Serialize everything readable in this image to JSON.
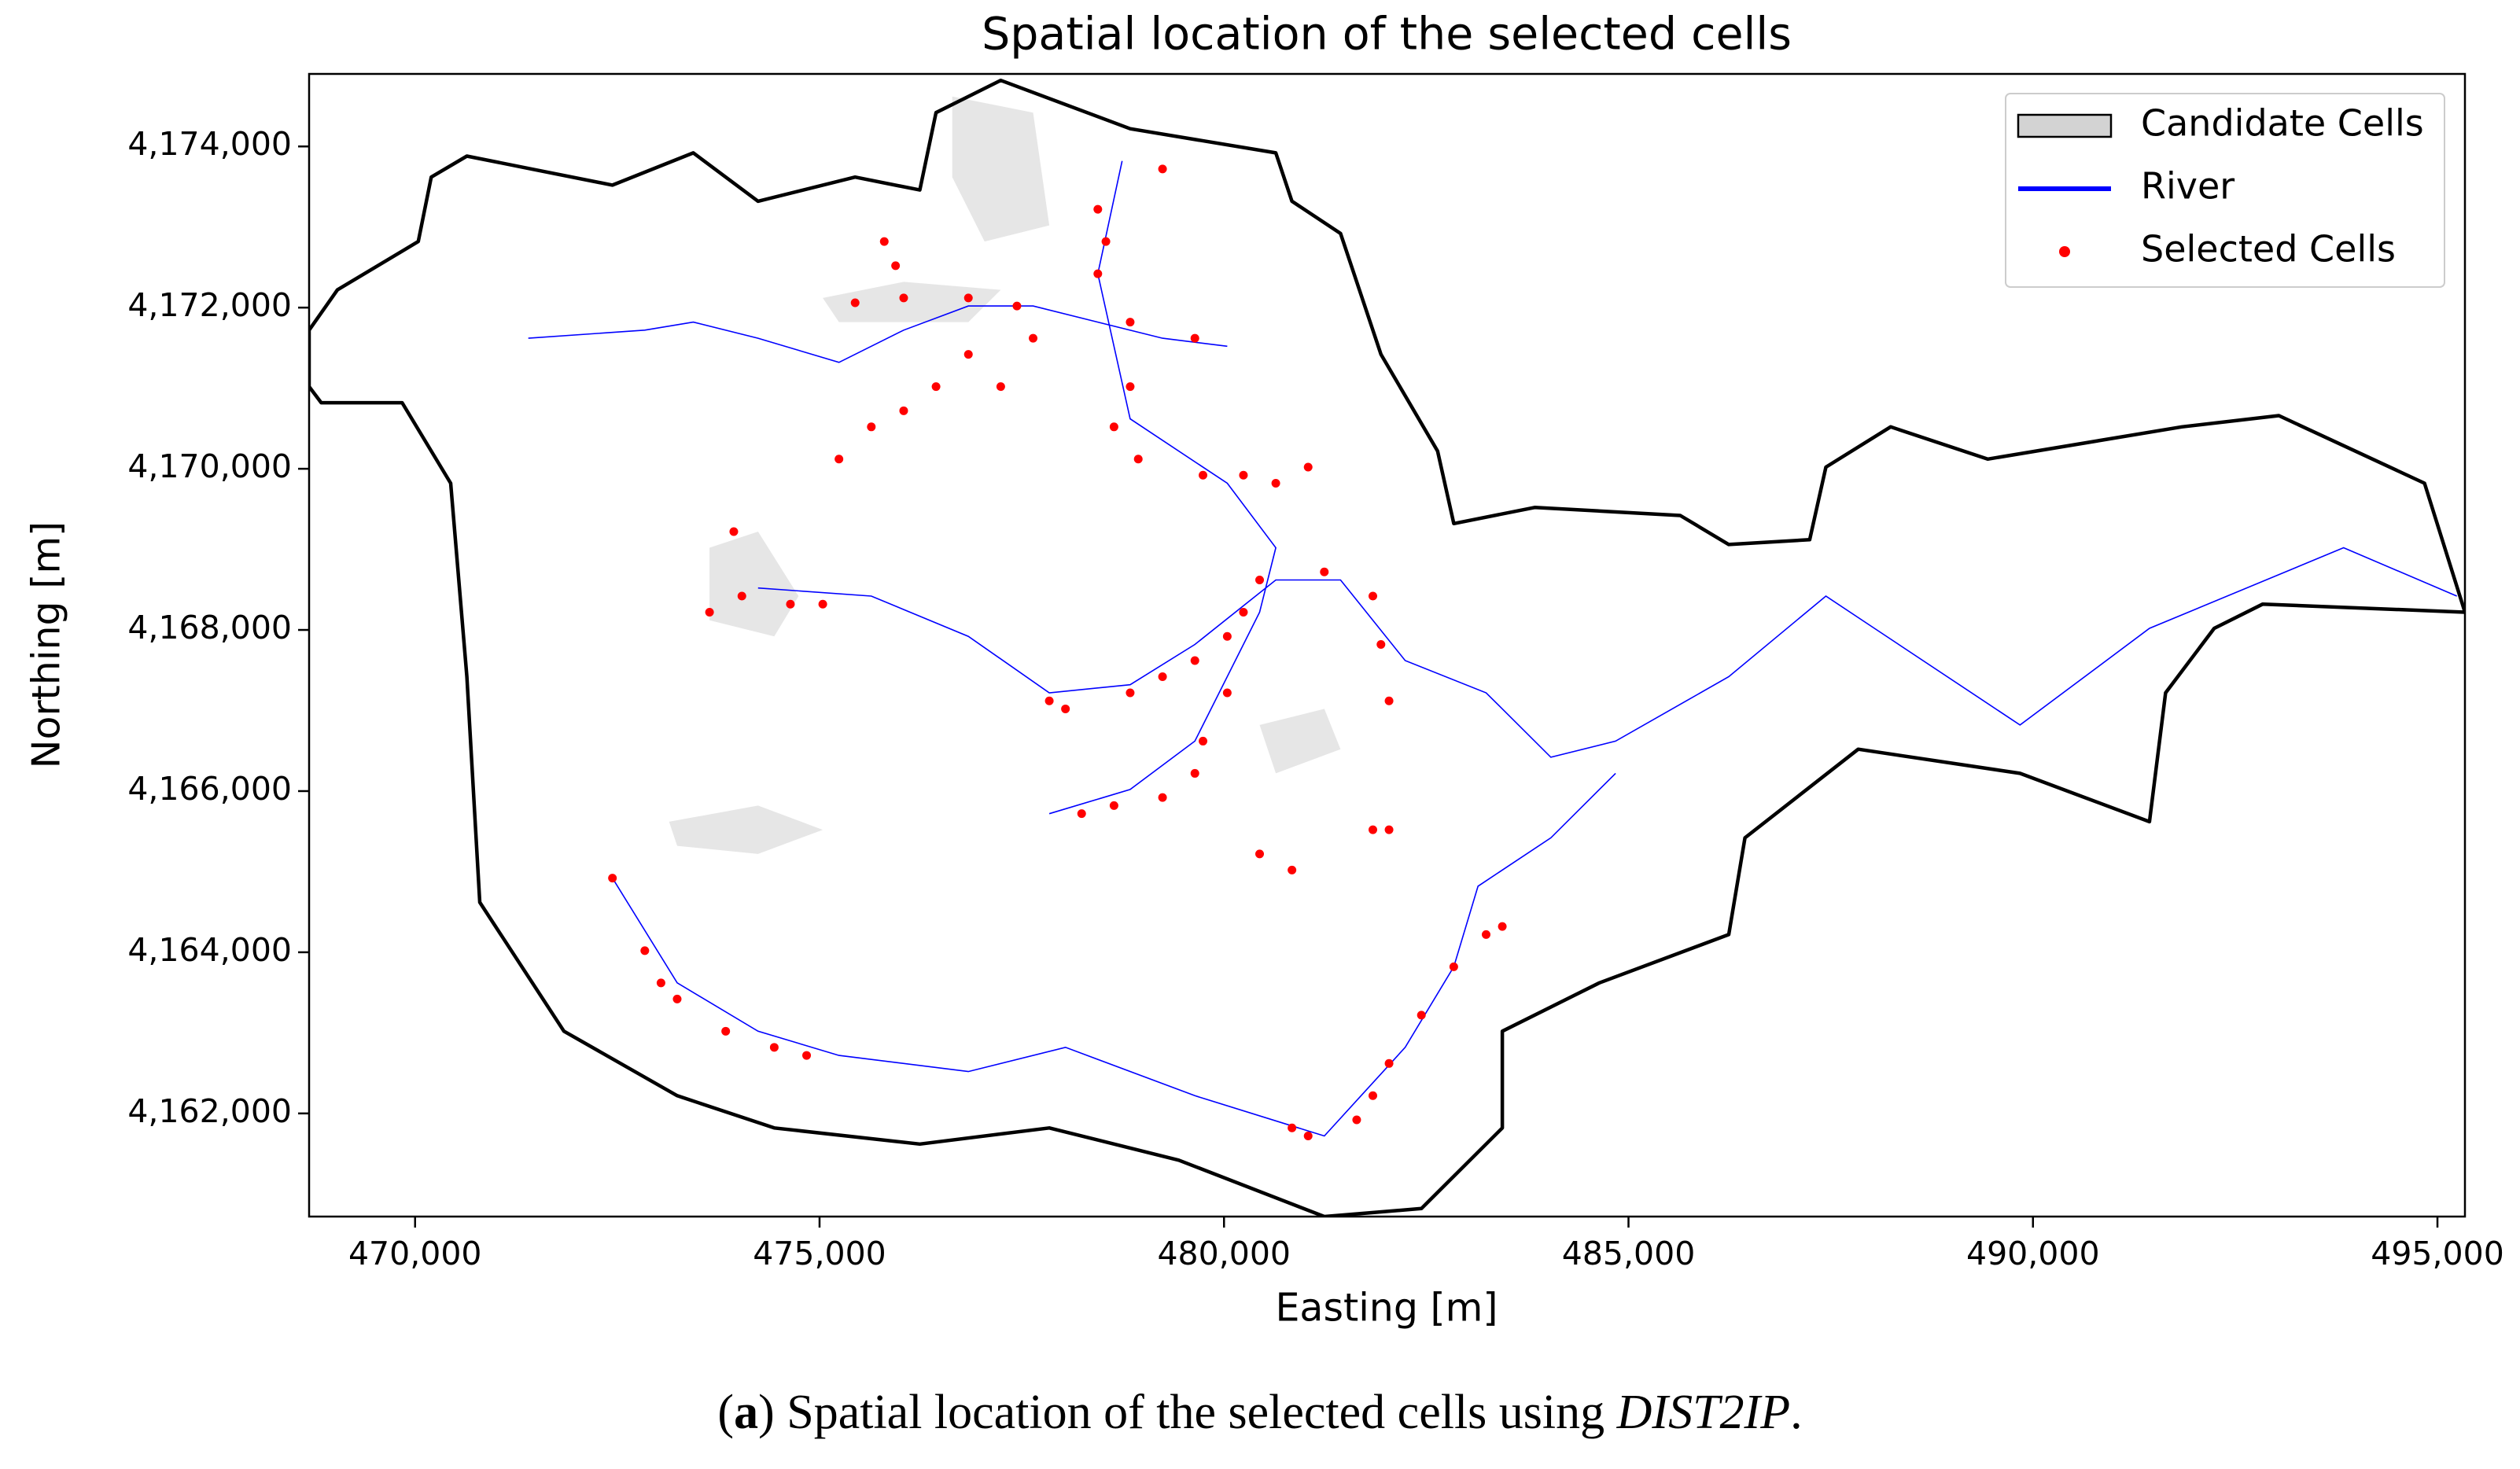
{
  "chart_data": {
    "type": "map",
    "title": "Spatial location of the selected cells",
    "xlabel": "Easting [m]",
    "ylabel": "Northing [m]",
    "caption": [
      "(",
      "a",
      ") Spatial location of the selected cells using ",
      "DIST2IP",
      "."
    ],
    "xlim": [
      468690,
      495340
    ],
    "ylim": [
      4160720,
      4174900
    ],
    "xticks": [
      {
        "value": 470000,
        "label": "470,000"
      },
      {
        "value": 475000,
        "label": "475,000"
      },
      {
        "value": 480000,
        "label": "480,000"
      },
      {
        "value": 485000,
        "label": "485,000"
      },
      {
        "value": 490000,
        "label": "490,000"
      },
      {
        "value": 495000,
        "label": "495,000"
      }
    ],
    "yticks": [
      {
        "value": 4162000,
        "label": "4,162,000"
      },
      {
        "value": 4164000,
        "label": "4,164,000"
      },
      {
        "value": 4166000,
        "label": "4,166,000"
      },
      {
        "value": 4168000,
        "label": "4,168,000"
      },
      {
        "value": 4170000,
        "label": "4,170,000"
      },
      {
        "value": 4172000,
        "label": "4,172,000"
      },
      {
        "value": 4174000,
        "label": "4,174,000"
      }
    ],
    "legend": "upper right",
    "boundary": {
      "color": "#000000",
      "x": [
        468690,
        469040,
        470040,
        470200,
        470640,
        471440,
        472440,
        473440,
        474240,
        475440,
        476240,
        476440,
        477240,
        478840,
        480640,
        480840,
        481440,
        481940,
        482640,
        482840,
        483840,
        485640,
        486240,
        487240,
        487440,
        488240,
        489440,
        491840,
        493040,
        494840,
        495340,
        492840,
        492240,
        491640,
        491440,
        489840,
        487840,
        486440,
        486240,
        484640,
        483440,
        483440,
        482440,
        481240,
        479440,
        477840,
        476240,
        474440,
        473240,
        471840,
        470800,
        470640,
        470440,
        469840,
        468840,
        468690
      ],
      "y": [
        4171720,
        4172220,
        4172820,
        4173620,
        4173880,
        4173720,
        4173520,
        4173920,
        4173320,
        4173620,
        4173460,
        4174420,
        4174820,
        4174220,
        4173920,
        4173320,
        4172920,
        4171420,
        4170220,
        4169320,
        4169520,
        4169420,
        4169060,
        4169120,
        4170020,
        4170520,
        4170120,
        4170520,
        4170660,
        4169820,
        4168220,
        4168320,
        4168020,
        4167220,
        4165620,
        4166220,
        4166520,
        4165420,
        4164220,
        4163620,
        4163020,
        4161820,
        4160820,
        4160720,
        4161420,
        4161820,
        4161620,
        4161820,
        4162220,
        4163020,
        4164620,
        4167420,
        4169820,
        4170820,
        4170820,
        4171020
      ]
    },
    "series": [
      {
        "name": "Candidate Cells",
        "color": "#e6e6e6",
        "edgecolor": "#000000",
        "shapes": [
          {
            "x": [
              473640,
              474240,
              474740,
              474440,
              473640
            ],
            "y": [
              4169020,
              4169220,
              4168420,
              4167920,
              4168120
            ]
          },
          {
            "x": [
              473140,
              474240,
              475040,
              474240,
              473240
            ],
            "y": [
              4165620,
              4165820,
              4165520,
              4165220,
              4165320
            ]
          },
          {
            "x": [
              475040,
              476040,
              477240,
              476840,
              475240
            ],
            "y": [
              4172120,
              4172320,
              4172220,
              4171820,
              4171820
            ]
          },
          {
            "x": [
              480440,
              481240,
              481440,
              480640
            ],
            "y": [
              4166820,
              4167020,
              4166520,
              4166220
            ]
          },
          {
            "x": [
              476640,
              477640,
              477840,
              477040,
              476640
            ],
            "y": [
              4174620,
              4174420,
              4173020,
              4172820,
              4173620
            ]
          }
        ]
      },
      {
        "name": "River",
        "color": "#0000ff",
        "lines": [
          {
            "x": [
              471400,
              472840,
              473440,
              474240,
              475240,
              476040,
              476840,
              477640,
              478440,
              479240,
              480040
            ],
            "y": [
              4171620,
              4171720,
              4171820,
              4171620,
              4171320,
              4171720,
              4172020,
              4172020,
              4171820,
              4171620,
              4171520
            ]
          },
          {
            "x": [
              474240,
              475640,
              476840,
              477840,
              478840,
              479640,
              480640,
              481440,
              482240,
              483240,
              484040,
              484840,
              486240,
              487440,
              488040,
              489840,
              491440,
              493840,
              495240
            ],
            "y": [
              4168520,
              4168420,
              4167920,
              4167220,
              4167320,
              4167820,
              4168620,
              4168620,
              4167620,
              4167220,
              4166420,
              4166620,
              4167420,
              4168420,
              4168020,
              4166820,
              4168020,
              4169020,
              4168420
            ]
          },
          {
            "x": [
              472440,
              473240,
              474240,
              475240,
              476840,
              478040,
              479640,
              481240,
              482240,
              482840,
              483140,
              484040,
              484840
            ],
            "y": [
              4164920,
              4163620,
              4163020,
              4162720,
              4162520,
              4162820,
              4162220,
              4161720,
              4162820,
              4163820,
              4164820,
              4165420,
              4166220
            ]
          },
          {
            "x": [
              478740,
              478440,
              478840,
              480040,
              480640,
              480440,
              479640,
              478840,
              477840
            ],
            "y": [
              4173820,
              4172420,
              4170620,
              4169820,
              4169020,
              4168220,
              4166620,
              4166020,
              4165720
            ]
          }
        ]
      },
      {
        "name": "Selected Cells",
        "color": "#ff0000",
        "x": [
          475800,
          475940,
          476040,
          475440,
          476840,
          477440,
          477640,
          477240,
          476840,
          476440,
          476040,
          475640,
          475240,
          478440,
          478540,
          478440,
          478840,
          478840,
          478640,
          478940,
          479240,
          479640,
          479740,
          480240,
          480640,
          481040,
          480440,
          480240,
          480040,
          479640,
          479240,
          478840,
          478040,
          477840,
          480040,
          479740,
          479640,
          479240,
          478640,
          478240,
          481240,
          481840,
          481940,
          482040,
          481840,
          482040,
          483240,
          483440,
          482840,
          482440,
          482040,
          481840,
          481640,
          480840,
          481040,
          472440,
          472840,
          473040,
          473240,
          473840,
          474440,
          474840,
          473640,
          474040,
          474640,
          475040,
          473940,
          480440,
          480840
        ],
        "y": [
          4172820,
          4172520,
          4172120,
          4172060,
          4172120,
          4172020,
          4171620,
          4171020,
          4171420,
          4171020,
          4170720,
          4170520,
          4170120,
          4173220,
          4172820,
          4172420,
          4171820,
          4171020,
          4170520,
          4170120,
          4173720,
          4171620,
          4169920,
          4169920,
          4169820,
          4170020,
          4168620,
          4168220,
          4167920,
          4167620,
          4167420,
          4167220,
          4167020,
          4167120,
          4167220,
          4166620,
          4166220,
          4165920,
          4165820,
          4165720,
          4168720,
          4168420,
          4167820,
          4165520,
          4165520,
          4167120,
          4164220,
          4164320,
          4163820,
          4163220,
          4162620,
          4162220,
          4161920,
          4161820,
          4161720,
          4164920,
          4164020,
          4163620,
          4163420,
          4163020,
          4162820,
          4162720,
          4168220,
          4168420,
          4168320,
          4168320,
          4169220,
          4165220,
          4165020
        ]
      }
    ]
  }
}
